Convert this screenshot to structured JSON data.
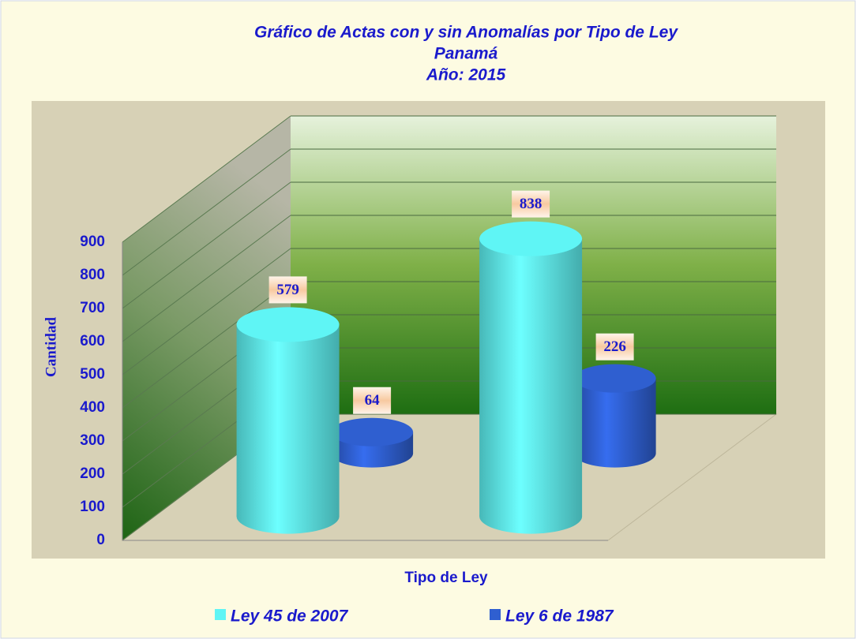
{
  "chart_data": {
    "type": "bar3d",
    "title": [
      "Gráfico de Actas con y sin Anomalías por Tipo de Ley",
      "Panamá",
      "Año:  2015"
    ],
    "xlabel": "Tipo de Ley",
    "ylabel": "Cantidad",
    "categories": [
      null,
      null
    ],
    "series": [
      {
        "name": "Ley 45 de 2007",
        "color": "#5ff5f5",
        "values": [
          579,
          838
        ]
      },
      {
        "name": "Ley 6 de 1987",
        "color": "#2f5fd0",
        "values": [
          64,
          226
        ]
      }
    ],
    "ylim": [
      0,
      900
    ],
    "yticks": [
      0,
      100,
      200,
      300,
      400,
      500,
      600,
      700,
      800,
      900
    ],
    "grid": true,
    "legend": "bottom"
  }
}
